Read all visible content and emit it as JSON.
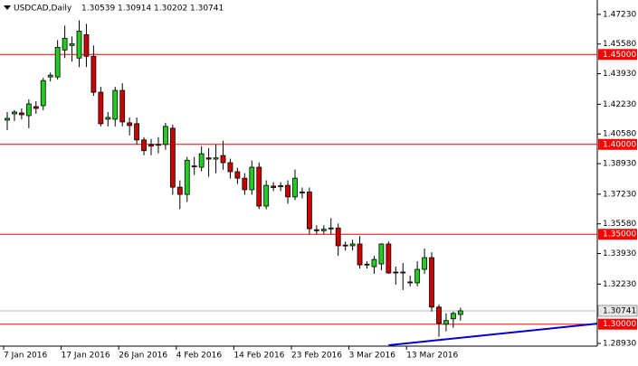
{
  "chart_data": {
    "type": "candlestick",
    "title": "USDCAD,Daily",
    "header_values": [
      1.30539,
      1.30914,
      1.30202,
      1.30741
    ],
    "categories": [
      "7 Jan 2016",
      null,
      null,
      null,
      null,
      null,
      null,
      null,
      "17 Jan 2016",
      null,
      null,
      null,
      null,
      null,
      null,
      null,
      "26 Jan 2016",
      null,
      null,
      null,
      null,
      null,
      null,
      null,
      "4 Feb 2016",
      null,
      null,
      null,
      null,
      null,
      null,
      null,
      "14 Feb 2016",
      null,
      null,
      null,
      null,
      null,
      null,
      null,
      "23 Feb 2016",
      null,
      null,
      null,
      null,
      null,
      null,
      null,
      "3 Mar 2016",
      null,
      null,
      null,
      null,
      null,
      null,
      null,
      "13 Mar 2016",
      null,
      null,
      null,
      null,
      null,
      null,
      null
    ],
    "open": [
      1.4135,
      1.417,
      1.4175,
      1.416,
      1.421,
      1.4215,
      1.4375,
      1.4375,
      1.4525,
      1.455,
      1.448,
      1.461,
      1.449,
      1.429,
      1.414,
      1.414,
      1.43,
      1.412,
      1.4115,
      1.4025,
      1.4,
      1.3995,
      1.4,
      1.409,
      1.3762,
      1.3722,
      1.388,
      1.3873,
      1.3925,
      1.3918,
      1.3938,
      1.3898,
      1.3848,
      1.3812,
      1.3748,
      1.3873,
      1.3657,
      1.3768,
      1.3768,
      1.3772,
      1.3708,
      1.3735,
      1.3735,
      1.3525,
      1.352,
      1.353,
      1.3535,
      1.344,
      1.3436,
      1.3446,
      1.3334,
      1.332,
      1.3335,
      1.3446,
      1.329,
      1.3285,
      1.323,
      1.323,
      1.3305,
      1.337,
      1.3095,
      1.3,
      1.303,
      1.30539
    ],
    "high": [
      1.418,
      1.419,
      1.42,
      1.425,
      1.424,
      1.437,
      1.44,
      1.458,
      1.466,
      1.46,
      1.469,
      1.467,
      1.455,
      1.432,
      1.418,
      1.432,
      1.434,
      1.415,
      1.415,
      1.404,
      1.403,
      1.404,
      1.412,
      1.411,
      1.38,
      1.393,
      1.393,
      1.399,
      1.398,
      1.4,
      1.402,
      1.392,
      1.387,
      1.384,
      1.391,
      1.39,
      1.38,
      1.379,
      1.379,
      1.38,
      1.386,
      1.376,
      1.376,
      1.355,
      1.355,
      1.359,
      1.356,
      1.346,
      1.347,
      1.349,
      1.335,
      1.338,
      1.345,
      1.346,
      1.332,
      1.334,
      1.327,
      1.335,
      1.342,
      1.34,
      1.311,
      1.306,
      1.307,
      1.30914
    ],
    "low": [
      1.408,
      1.413,
      1.414,
      1.409,
      1.417,
      1.419,
      1.435,
      1.436,
      1.448,
      1.446,
      1.443,
      1.443,
      1.427,
      1.41,
      1.41,
      1.41,
      1.41,
      1.405,
      1.4,
      1.394,
      1.394,
      1.395,
      1.397,
      1.372,
      1.364,
      1.368,
      1.383,
      1.385,
      1.382,
      1.384,
      1.386,
      1.381,
      1.378,
      1.372,
      1.372,
      1.364,
      1.364,
      1.374,
      1.374,
      1.367,
      1.369,
      1.37,
      1.35,
      1.35,
      1.35,
      1.35,
      1.338,
      1.341,
      1.341,
      1.331,
      1.331,
      1.328,
      1.33,
      1.328,
      1.322,
      1.319,
      1.321,
      1.321,
      1.328,
      1.307,
      1.293,
      1.296,
      1.298,
      1.30202
    ],
    "close": [
      1.4145,
      1.418,
      1.4165,
      1.4225,
      1.42,
      1.4355,
      1.4385,
      1.454,
      1.459,
      1.456,
      1.463,
      1.449,
      1.429,
      1.4115,
      1.415,
      1.43,
      1.4125,
      1.4105,
      1.4025,
      1.3965,
      1.399,
      1.4,
      1.41,
      1.3762,
      1.3722,
      1.3912,
      1.3875,
      1.3948,
      1.3918,
      1.3925,
      1.3898,
      1.3848,
      1.3812,
      1.3748,
      1.3873,
      1.3657,
      1.3772,
      1.376,
      1.377,
      1.3708,
      1.3812,
      1.373,
      1.3531,
      1.352,
      1.3528,
      1.3535,
      1.3436,
      1.3436,
      1.3446,
      1.333,
      1.333,
      1.336,
      1.3446,
      1.3285,
      1.3285,
      1.329,
      1.3235,
      1.3305,
      1.337,
      1.3095,
      1.3005,
      1.302,
      1.306,
      1.30741
    ],
    "bull_color": "#22cc22",
    "bear_color": "#cc0000",
    "ylim": [
      1.2878,
      1.4803
    ],
    "yticks": [
      {
        "value": 1.4723,
        "label": "1.47230"
      },
      {
        "value": 1.4558,
        "label": "1.45580"
      },
      {
        "value": 1.4393,
        "label": "1.43930"
      },
      {
        "value": 1.4223,
        "label": "1.42230"
      },
      {
        "value": 1.4058,
        "label": "1.40580"
      },
      {
        "value": 1.3893,
        "label": "1.38930"
      },
      {
        "value": 1.3723,
        "label": "1.37230"
      },
      {
        "value": 1.3558,
        "label": "1.35580"
      },
      {
        "value": 1.3393,
        "label": "1.33930"
      },
      {
        "value": 1.3223,
        "label": "1.32230"
      },
      {
        "value": 1.2893,
        "label": "1.28930"
      }
    ],
    "levels": [
      {
        "value": 1.45,
        "label": "1.45000"
      },
      {
        "value": 1.4,
        "label": "1.40000"
      },
      {
        "value": 1.35,
        "label": "1.35000"
      },
      {
        "value": 1.3,
        "label": "1.30000"
      }
    ],
    "level_color": "#ff0000",
    "current_price": {
      "value": 1.30741,
      "label": "1.30741"
    },
    "trendline": {
      "x": [
        53,
        82
      ],
      "values": [
        1.2883,
        1.3003
      ],
      "color": "#0000cc"
    }
  }
}
